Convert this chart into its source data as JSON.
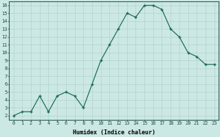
{
  "x": [
    0,
    1,
    2,
    3,
    4,
    5,
    6,
    7,
    8,
    9,
    10,
    11,
    12,
    13,
    14,
    15,
    16,
    17,
    18,
    19,
    20,
    21,
    22,
    23
  ],
  "y": [
    2.0,
    2.5,
    2.5,
    4.5,
    2.5,
    4.5,
    5.0,
    4.5,
    3.0,
    6.0,
    9.0,
    11.0,
    13.0,
    15.0,
    14.5,
    16.0,
    16.0,
    15.5,
    13.0,
    12.0,
    10.0,
    9.5,
    8.5,
    8.5
  ],
  "xlabel": "Humidex (Indice chaleur)",
  "ylabel_ticks": [
    2,
    3,
    4,
    5,
    6,
    7,
    8,
    9,
    10,
    11,
    12,
    13,
    14,
    15,
    16
  ],
  "xlim": [
    -0.5,
    23.5
  ],
  "ylim": [
    1.5,
    16.5
  ],
  "line_color": "#1a6b5a",
  "marker_color": "#1a6b5a",
  "bg_color": "#cce8e4",
  "grid_color": "#b0d0cc",
  "tick_fontsize": 5.0,
  "xlabel_fontsize": 6.0
}
